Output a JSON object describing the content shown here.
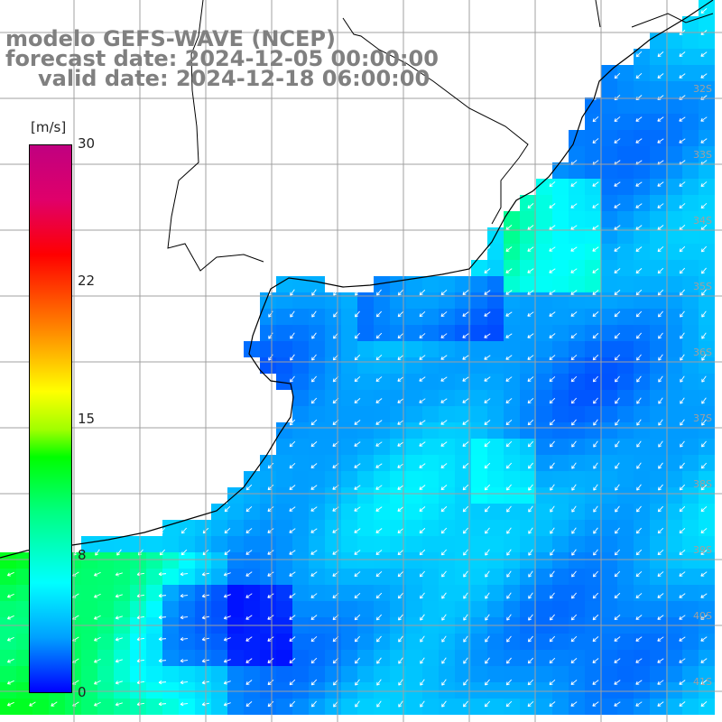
{
  "title": {
    "line1": "modelo GEFS-WAVE (NCEP)",
    "line2": "forecast date: 2024-12-05 00:00:00",
    "line3": "valid date: 2024-12-18 06:00:00"
  },
  "colorbar": {
    "unit": "[m/s]",
    "min": 0,
    "max": 30,
    "ticks": [
      "30",
      "22",
      "15",
      "8",
      "0"
    ]
  },
  "lat_labels": [
    "32S",
    "33S",
    "34S",
    "35S",
    "36S",
    "37S",
    "38S",
    "39S",
    "40S",
    "41S"
  ],
  "colors": {
    "land": "#ffffff",
    "grid": "#a0a0a0",
    "coast": "#000000",
    "arrow": "#ffffff"
  },
  "field": {
    "description_levels": "wind speed shown by cell color, direction by arrows",
    "dominant_direction": "southwest",
    "speed_range_mps": [
      0,
      15
    ]
  }
}
